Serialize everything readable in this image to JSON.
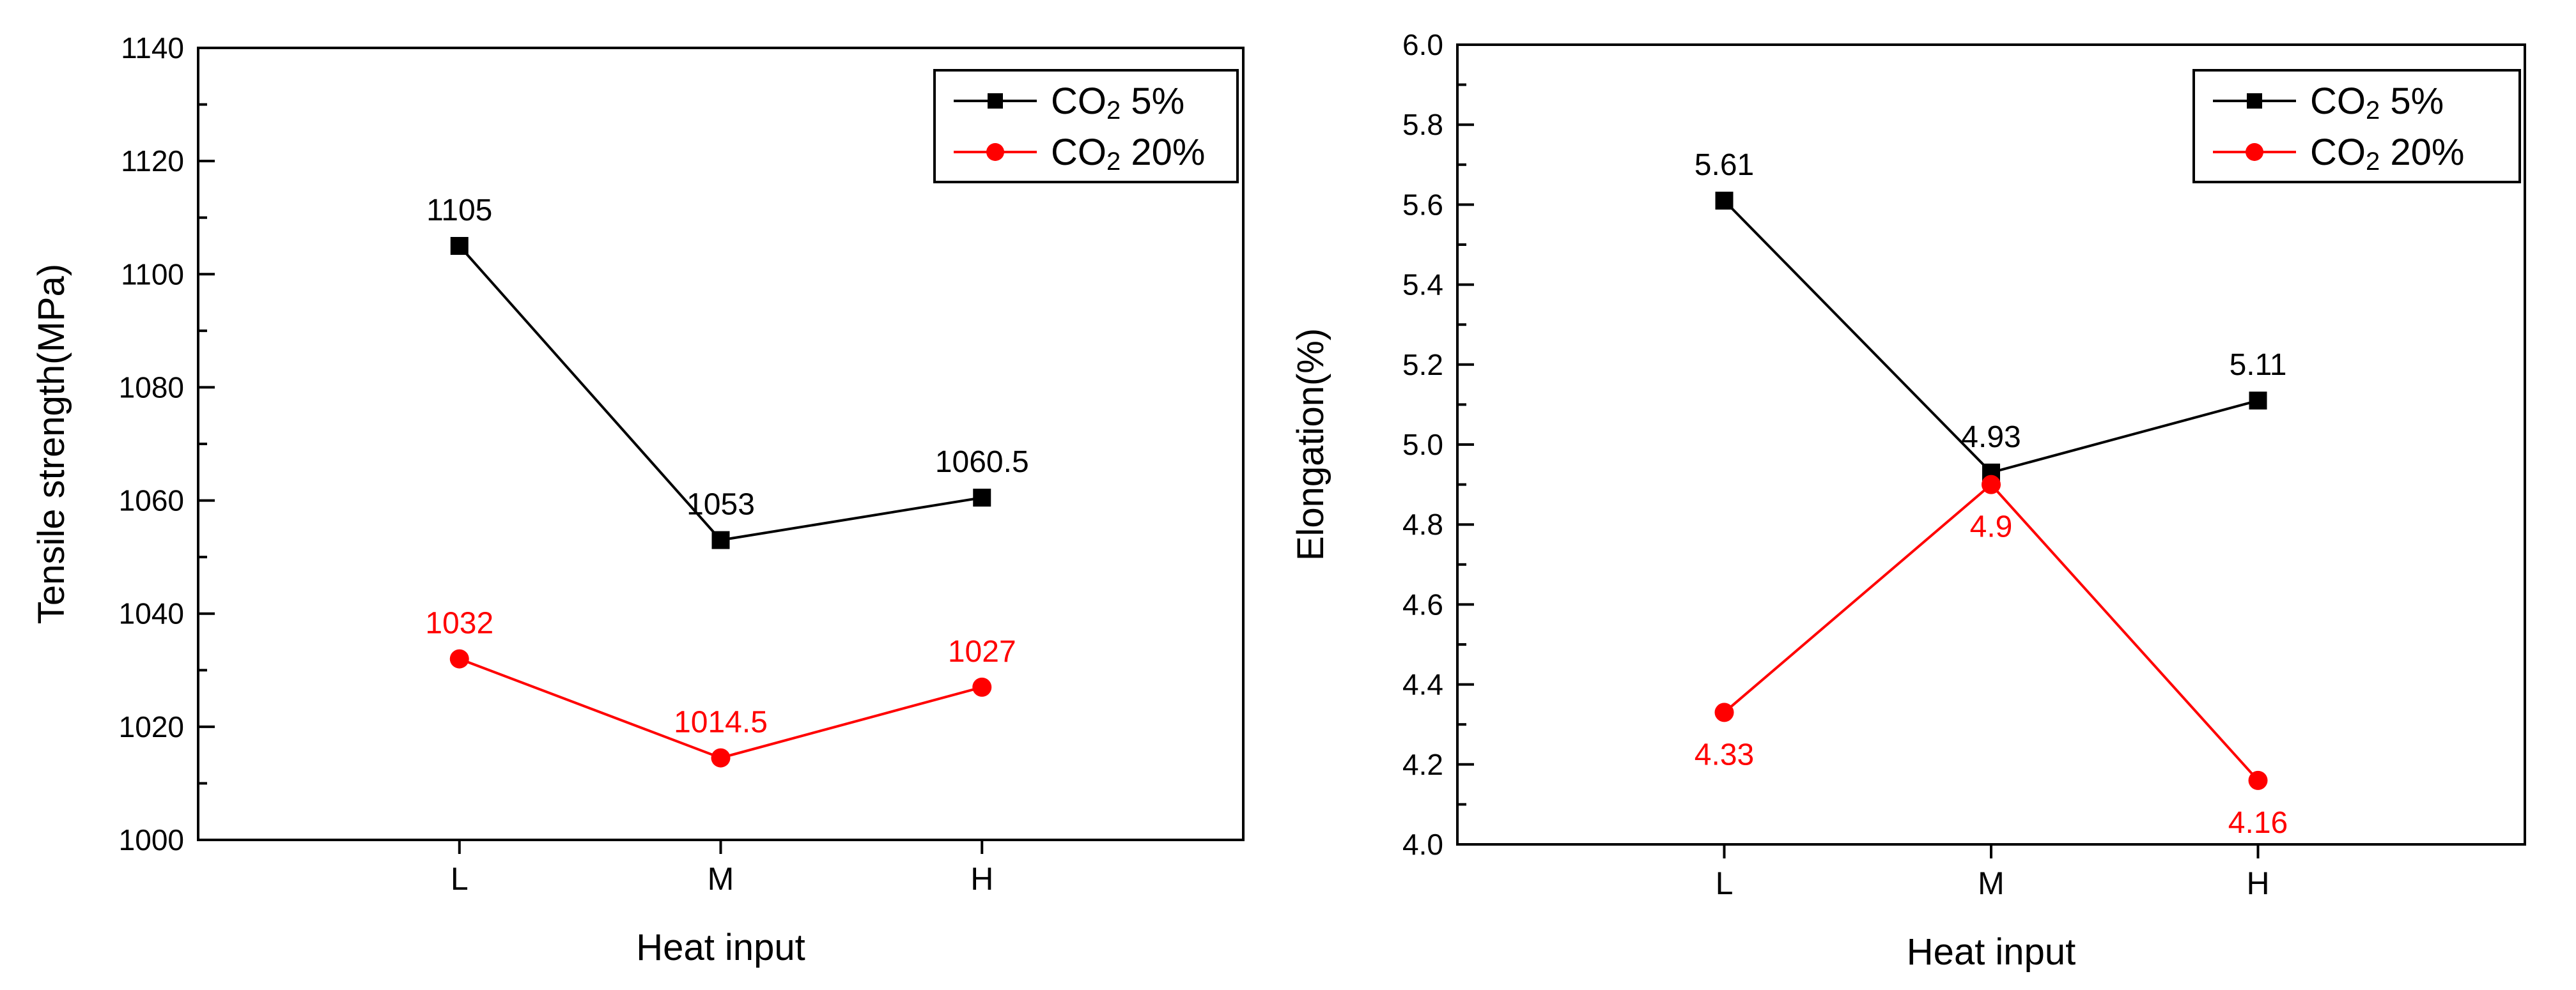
{
  "colors": {
    "series_black": "#000000",
    "series_red": "#ff0000",
    "axis": "#000000",
    "background": "#ffffff"
  },
  "chart_data": [
    {
      "type": "line",
      "title": "",
      "xlabel": "Heat input",
      "ylabel": "Tensile strength(MPa)",
      "categories": [
        "L",
        "M",
        "H"
      ],
      "ylim": [
        1000,
        1140
      ],
      "yticks": [
        1000,
        1020,
        1040,
        1060,
        1080,
        1100,
        1120,
        1140
      ],
      "ytick_labels": [
        "1000",
        "1020",
        "1040",
        "1060",
        "1080",
        "1100",
        "1120",
        "1140"
      ],
      "y_minor_step": 10,
      "legend_position": "top-right",
      "series": [
        {
          "name": "CO2 5%",
          "legend_main": "CO",
          "legend_sub": "2",
          "legend_tail": " 5%",
          "marker": "square",
          "color": "#000000",
          "values": [
            1105,
            1053,
            1060.5
          ],
          "labels": [
            "1105",
            "1053",
            "1060.5"
          ],
          "label_placement": "above"
        },
        {
          "name": "CO2 20%",
          "legend_main": "CO",
          "legend_sub": "2",
          "legend_tail": " 20%",
          "marker": "circle",
          "color": "#ff0000",
          "values": [
            1032,
            1014.5,
            1027
          ],
          "labels": [
            "1032",
            "1014.5",
            "1027"
          ],
          "label_placement": "above"
        }
      ]
    },
    {
      "type": "line",
      "title": "",
      "xlabel": "Heat input",
      "ylabel": "Elongation(%)",
      "categories": [
        "L",
        "M",
        "H"
      ],
      "ylim": [
        4.0,
        6.0
      ],
      "yticks": [
        4.0,
        4.2,
        4.4,
        4.6,
        4.8,
        5.0,
        5.2,
        5.4,
        5.6,
        5.8,
        6.0
      ],
      "ytick_labels": [
        "4.0",
        "4.2",
        "4.4",
        "4.6",
        "4.8",
        "5.0",
        "5.2",
        "5.4",
        "5.6",
        "5.8",
        "6.0"
      ],
      "y_minor_step": 0.1,
      "legend_position": "top-right",
      "series": [
        {
          "name": "CO2 5%",
          "legend_main": "CO",
          "legend_sub": "2",
          "legend_tail": " 5%",
          "marker": "square",
          "color": "#000000",
          "values": [
            5.61,
            4.93,
            5.11
          ],
          "labels": [
            "5.61",
            "4.93",
            "5.11"
          ],
          "label_placement": "above"
        },
        {
          "name": "CO2 20%",
          "legend_main": "CO",
          "legend_sub": "2",
          "legend_tail": " 20%",
          "marker": "circle",
          "color": "#ff0000",
          "values": [
            4.33,
            4.9,
            4.16
          ],
          "labels": [
            "4.33",
            "4.9",
            "4.16"
          ],
          "label_placement": "below"
        }
      ]
    }
  ]
}
